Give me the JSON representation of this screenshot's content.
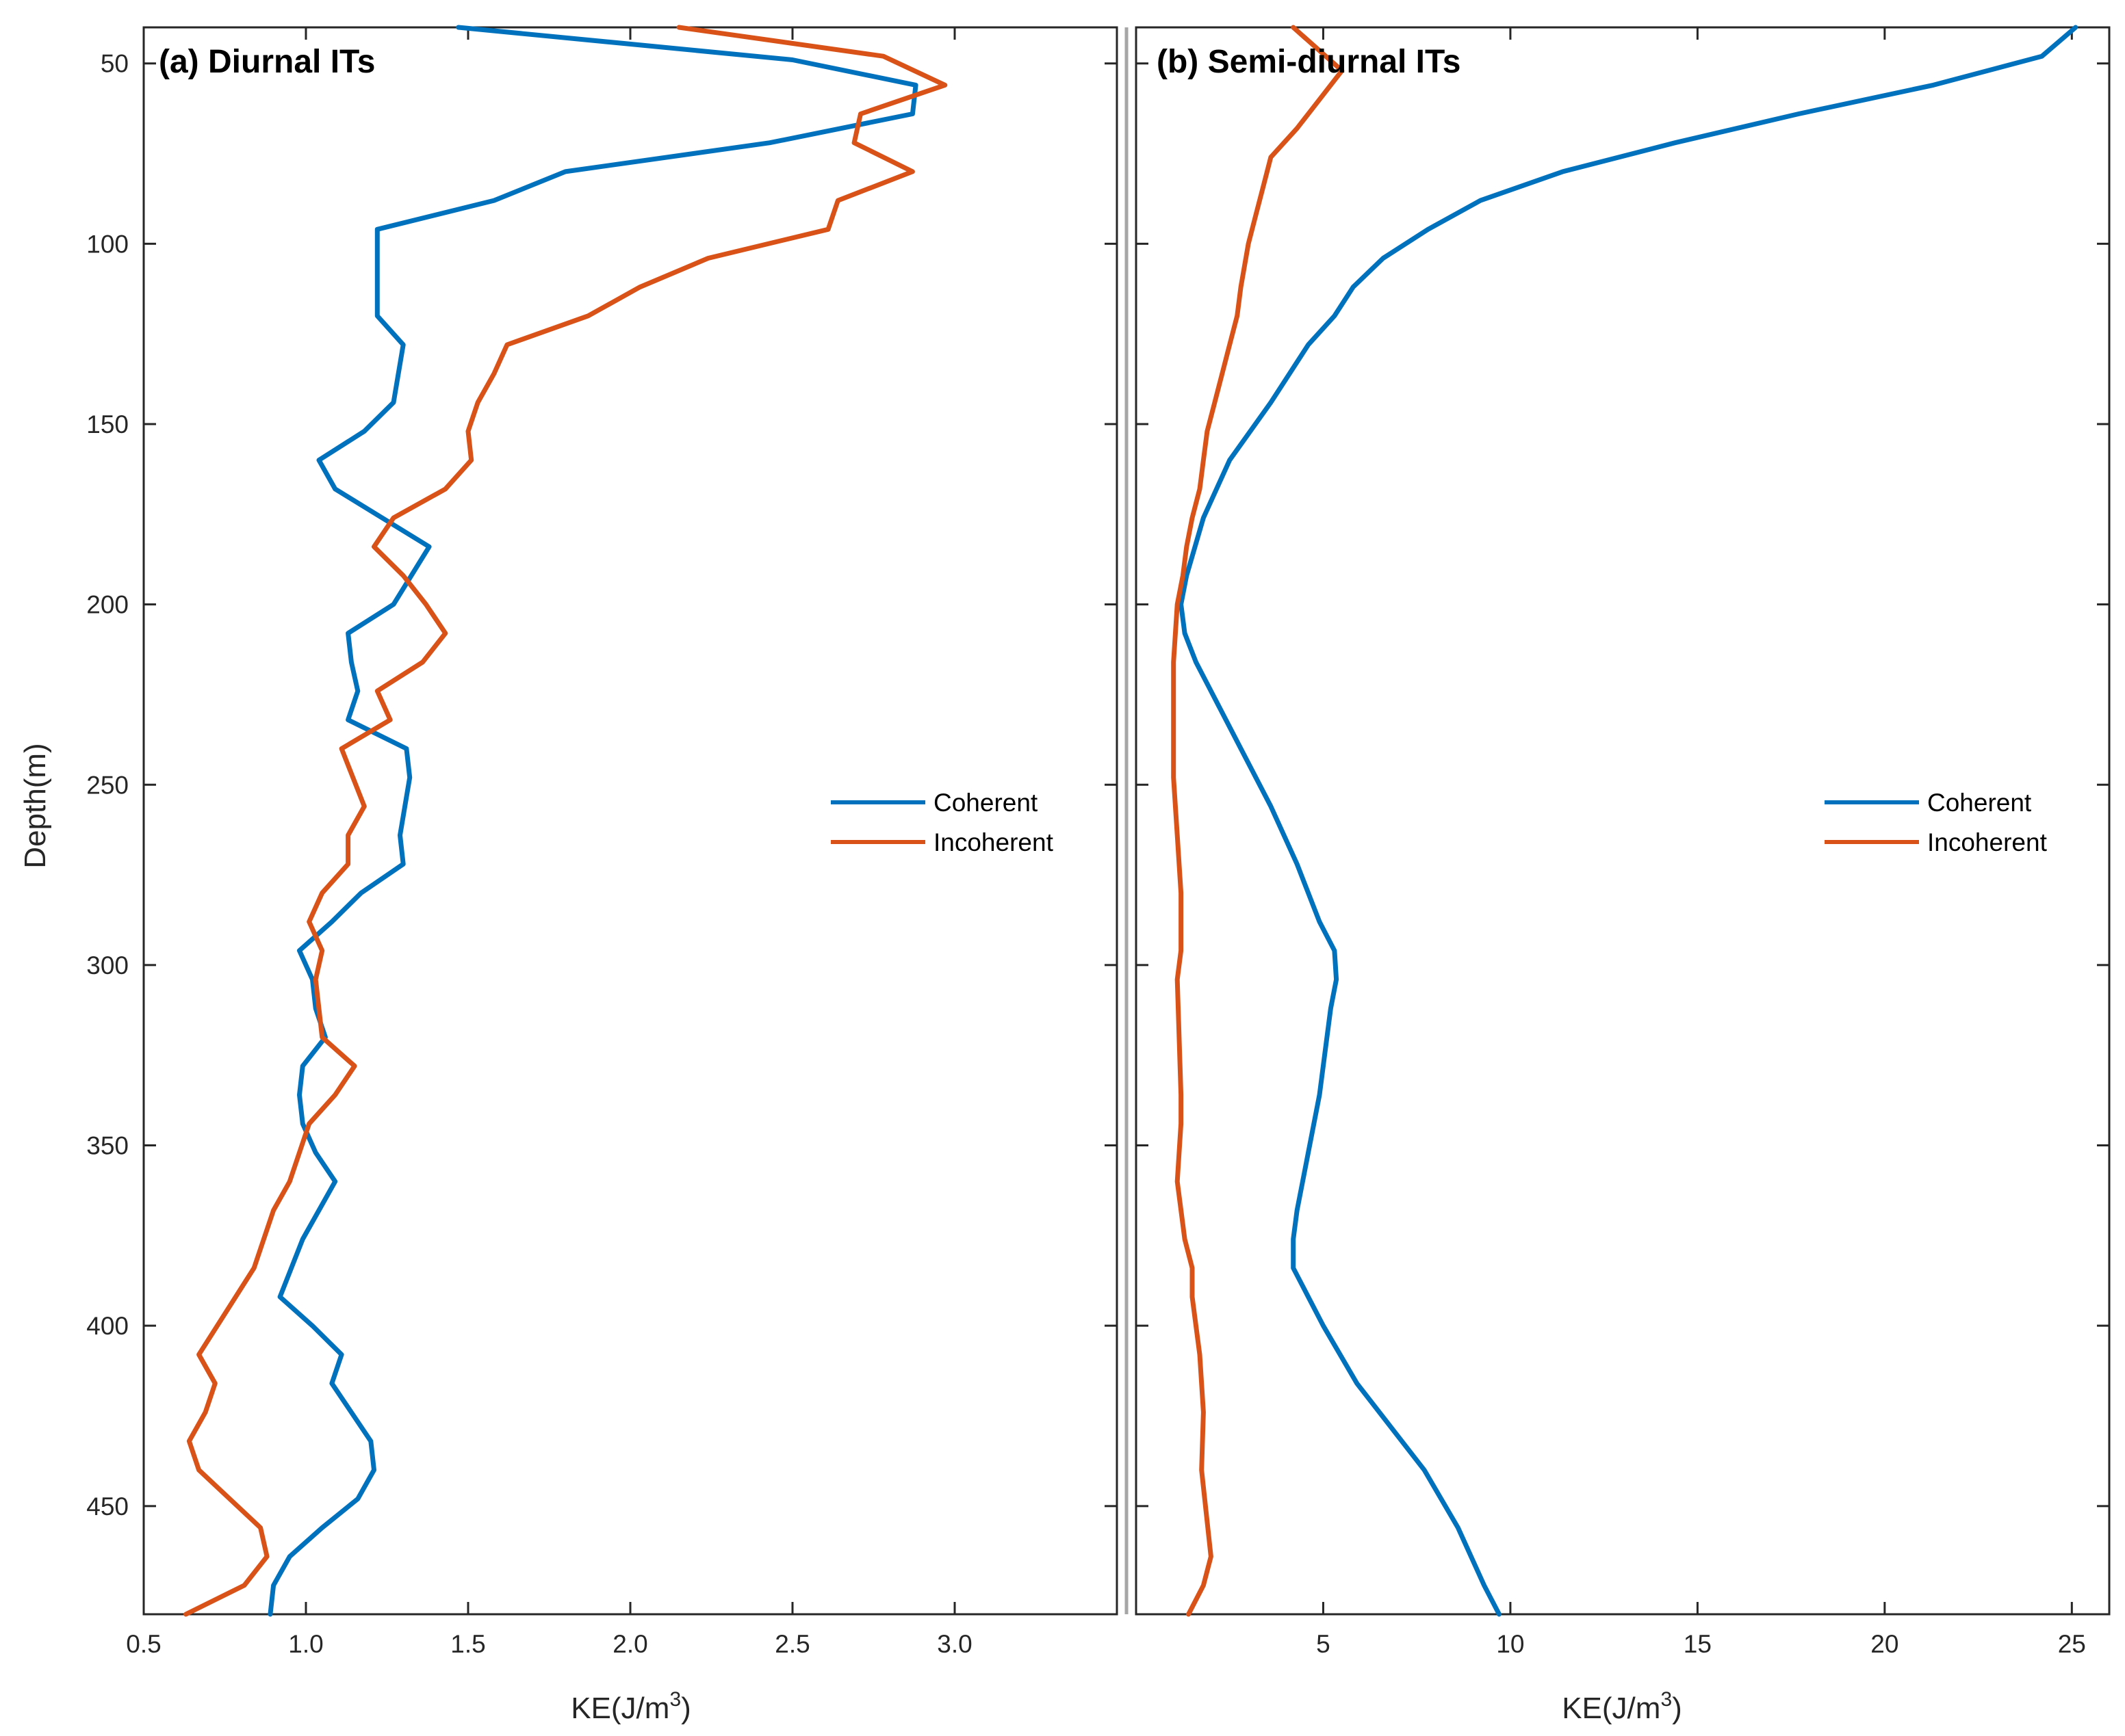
{
  "colors": {
    "coherent": "#0072BD",
    "incoherent": "#D95319",
    "axis": "#262626",
    "divider": "#A6A6A6"
  },
  "ylabel": "Depth(m)",
  "chart_data": [
    {
      "type": "line",
      "title": "(a) Diurnal ITs",
      "xlabel": "KE(J/m",
      "xlabel_sup": "3",
      "xlabel_end": ")",
      "ylabel": "Depth(m)",
      "xlim": [
        0.5,
        3.5
      ],
      "ylim": [
        40,
        480
      ],
      "y_reversed": true,
      "xticks": [
        0.5,
        1.0,
        1.5,
        2.0,
        2.5,
        3.0
      ],
      "xtick_labels": [
        "0.5",
        "1.0",
        "1.5",
        "2.0",
        "2.5",
        "3.0"
      ],
      "yticks": [
        50,
        100,
        150,
        200,
        250,
        300,
        350,
        400,
        450
      ],
      "ytick_labels": [
        "50",
        "100",
        "150",
        "200",
        "250",
        "300",
        "350",
        "400",
        "450"
      ],
      "legend": [
        "Coherent",
        "Incoherent"
      ],
      "legend_position": "right",
      "series": [
        {
          "name": "Coherent",
          "x": [
            1.47,
            2.5,
            2.88,
            2.87,
            2.43,
            1.8,
            1.58,
            1.22,
            1.22,
            1.22,
            1.3,
            1.27,
            1.18,
            1.04,
            1.09,
            1.38,
            1.27,
            1.13,
            1.14,
            1.16,
            1.13,
            1.31,
            1.32,
            1.29,
            1.3,
            1.17,
            1.08,
            0.98,
            1.02,
            1.03,
            1.06,
            0.99,
            0.98,
            0.99,
            1.03,
            1.09,
            1.04,
            0.99,
            0.92,
            1.02,
            1.11,
            1.08,
            1.2,
            1.21,
            1.16,
            1.05,
            0.95,
            0.9,
            0.89
          ],
          "y": [
            40,
            49,
            56,
            64,
            72,
            80,
            88,
            96,
            104,
            120,
            128,
            144,
            152,
            160,
            168,
            184,
            200,
            208,
            216,
            224,
            232,
            240,
            248,
            264,
            272,
            280,
            288,
            296,
            304,
            312,
            320,
            328,
            336,
            344,
            352,
            360,
            368,
            376,
            392,
            400,
            408,
            416,
            432,
            440,
            448,
            456,
            464,
            472,
            480
          ]
        },
        {
          "name": "Incoherent",
          "x": [
            2.15,
            2.78,
            2.97,
            2.71,
            2.69,
            2.87,
            2.64,
            2.61,
            2.24,
            2.03,
            1.87,
            1.62,
            1.58,
            1.53,
            1.5,
            1.51,
            1.43,
            1.27,
            1.21,
            1.3,
            1.37,
            1.43,
            1.36,
            1.22,
            1.26,
            1.11,
            1.18,
            1.13,
            1.13,
            1.05,
            1.01,
            1.05,
            1.03,
            1.05,
            1.15,
            1.09,
            1.01,
            0.95,
            0.9,
            0.87,
            0.84,
            0.67,
            0.72,
            0.69,
            0.64,
            0.67,
            0.86,
            0.88,
            0.81,
            0.63
          ],
          "y": [
            40,
            48,
            56,
            64,
            72,
            80,
            88,
            96,
            104,
            112,
            120,
            128,
            136,
            144,
            152,
            160,
            168,
            176,
            184,
            192,
            200,
            208,
            216,
            224,
            232,
            240,
            256,
            264,
            272,
            280,
            288,
            296,
            304,
            320,
            328,
            336,
            344,
            360,
            368,
            376,
            384,
            408,
            416,
            424,
            432,
            440,
            456,
            464,
            472,
            480
          ]
        }
      ]
    },
    {
      "type": "line",
      "title": "(b) Semi-diurnal ITs",
      "xlabel": "KE(J/m",
      "xlabel_sup": "3",
      "xlabel_end": ")",
      "xlim": [
        0,
        26
      ],
      "ylim": [
        40,
        480
      ],
      "y_reversed": true,
      "xticks": [
        5,
        10,
        15,
        20,
        25
      ],
      "xtick_labels": [
        "5",
        "10",
        "15",
        "20",
        "25"
      ],
      "yticks": [
        50,
        100,
        150,
        200,
        250,
        300,
        350,
        400,
        450
      ],
      "legend": [
        "Coherent",
        "Incoherent"
      ],
      "legend_position": "right",
      "series": [
        {
          "name": "Coherent",
          "x": [
            25.1,
            24.2,
            21.3,
            17.7,
            14.4,
            11.4,
            9.2,
            7.8,
            6.6,
            5.8,
            5.3,
            4.6,
            3.6,
            2.5,
            1.8,
            1.35,
            1.2,
            1.3,
            1.6,
            2.0,
            2.8,
            3.6,
            4.3,
            4.9,
            5.3,
            5.35,
            5.2,
            5.1,
            4.9,
            4.6,
            4.3,
            4.2,
            4.2,
            4.6,
            5.0,
            5.9,
            7.7,
            8.6,
            9.3,
            9.7
          ],
          "y": [
            40,
            48,
            56,
            64,
            72,
            80,
            88,
            96,
            104,
            112,
            120,
            128,
            144,
            160,
            176,
            192,
            200,
            208,
            216,
            224,
            240,
            256,
            272,
            288,
            296,
            304,
            312,
            320,
            336,
            352,
            368,
            376,
            384,
            392,
            400,
            416,
            440,
            456,
            472,
            480
          ]
        },
        {
          "name": "Incoherent",
          "x": [
            4.2,
            5.5,
            4.9,
            4.3,
            3.6,
            3.4,
            3.2,
            3.0,
            2.8,
            2.7,
            2.5,
            2.3,
            2.1,
            1.9,
            1.8,
            1.7,
            1.5,
            1.35,
            1.25,
            1.1,
            1.0,
            1.0,
            1.0,
            1.1,
            1.2,
            1.2,
            1.1,
            1.15,
            1.2,
            1.2,
            1.1,
            1.3,
            1.5,
            1.5,
            1.7,
            1.8,
            1.75,
            2.0,
            1.8,
            1.4
          ],
          "y": [
            40,
            52,
            60,
            68,
            76,
            84,
            92,
            100,
            112,
            120,
            128,
            136,
            144,
            152,
            160,
            168,
            176,
            184,
            192,
            200,
            216,
            232,
            248,
            264,
            280,
            296,
            304,
            320,
            336,
            344,
            360,
            376,
            384,
            392,
            408,
            424,
            440,
            464,
            472,
            480
          ]
        }
      ]
    }
  ]
}
